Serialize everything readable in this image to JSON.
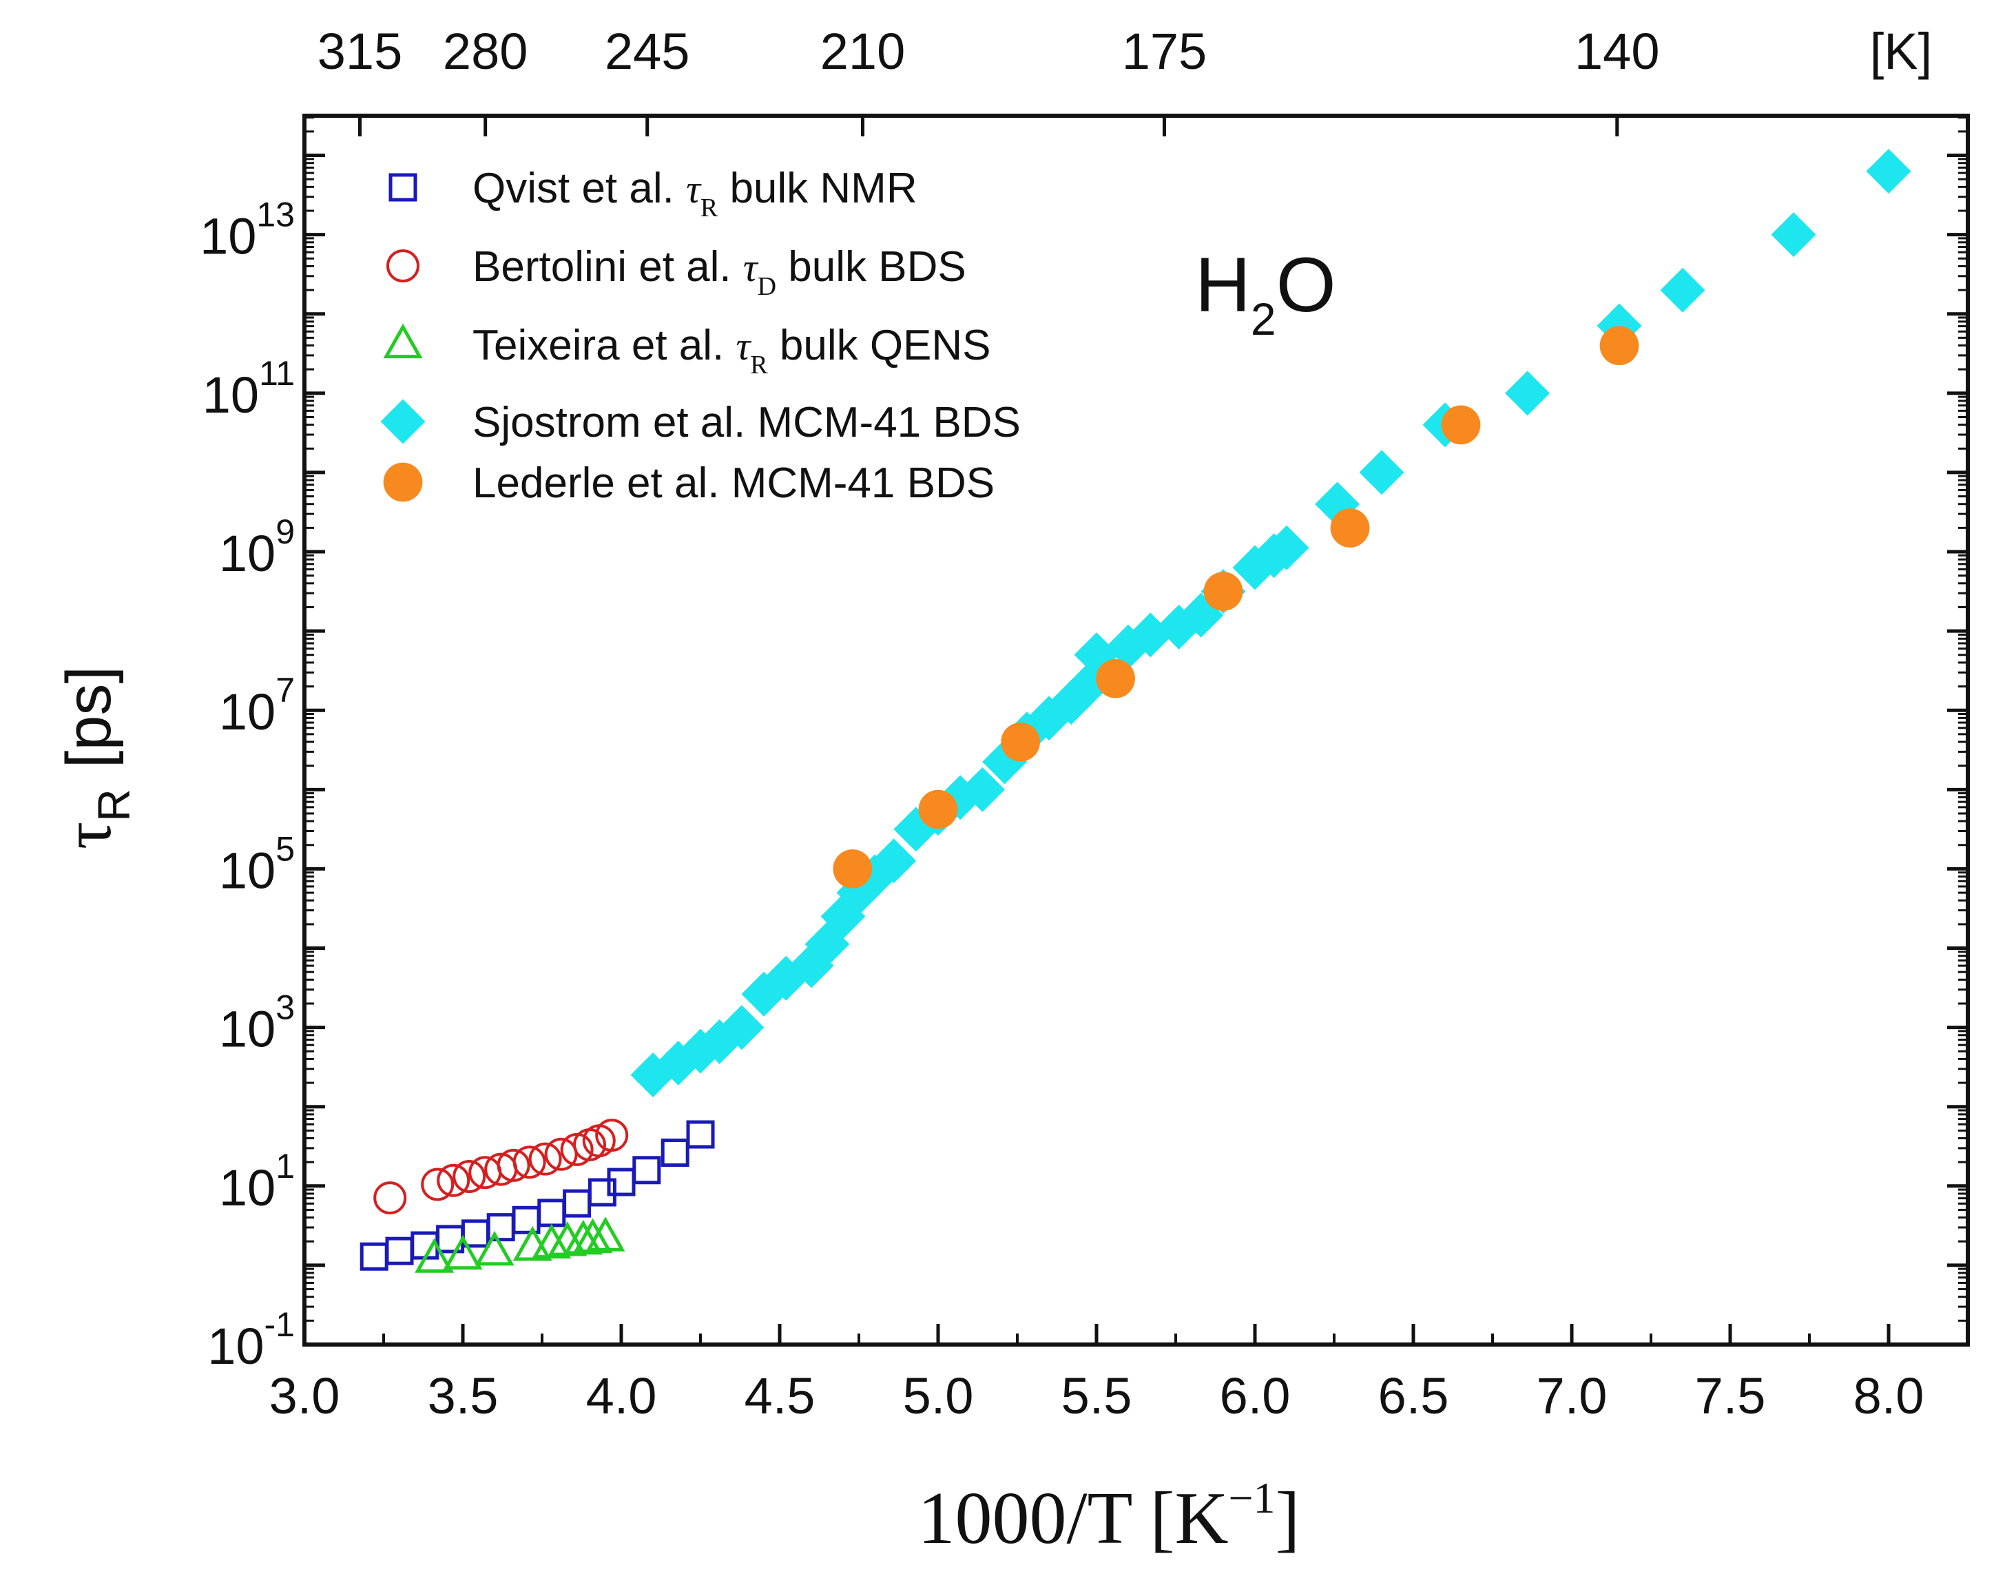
{
  "chart_data": {
    "type": "scatter",
    "title": "",
    "annotation": {
      "text": "H",
      "sub": "2",
      "tail": "O"
    },
    "xlabel": {
      "main": "1000/T  [K",
      "sup": "−1",
      "tail": "]"
    },
    "ylabel": {
      "greek": "τ",
      "sub": "R",
      "unit": "[ps]"
    },
    "xlim": [
      3.0,
      8.25
    ],
    "ylim_log10": [
      -1,
      14.5
    ],
    "x_ticks": [
      3.0,
      3.5,
      4.0,
      4.5,
      5.0,
      5.5,
      6.0,
      6.5,
      7.0,
      7.5,
      8.0
    ],
    "x_tick_labels": [
      "3.0",
      "3.5",
      "4.0",
      "4.5",
      "5.0",
      "5.5",
      "6.0",
      "6.5",
      "7.0",
      "7.5",
      "8.0"
    ],
    "y_ticks_exp": [
      -1,
      1,
      3,
      5,
      7,
      9,
      11,
      13
    ],
    "y_tick_labels": [
      "-1",
      "1",
      "3",
      "5",
      "7",
      "9",
      "11",
      "13"
    ],
    "top_axis": {
      "unit_label": "[K]",
      "ticks": [
        {
          "label": "315",
          "x": 3.175
        },
        {
          "label": "280",
          "x": 3.571
        },
        {
          "label": "245",
          "x": 4.082
        },
        {
          "label": "210",
          "x": 4.762
        },
        {
          "label": "175",
          "x": 5.714
        },
        {
          "label": "140",
          "x": 7.143
        }
      ]
    },
    "grid": false,
    "legend_position": "top-left",
    "series": [
      {
        "name": "Qvist et al. τR bulk NMR",
        "label_parts": [
          "Qvist et al. ",
          "τ",
          "R",
          " bulk NMR"
        ],
        "marker": "square-open",
        "color": "#1a1ab8",
        "points": [
          [
            3.22,
            0.11
          ],
          [
            3.3,
            0.18
          ],
          [
            3.38,
            0.25
          ],
          [
            3.46,
            0.33
          ],
          [
            3.54,
            0.4
          ],
          [
            3.62,
            0.48
          ],
          [
            3.7,
            0.57
          ],
          [
            3.78,
            0.66
          ],
          [
            3.86,
            0.78
          ],
          [
            3.94,
            0.92
          ],
          [
            4.0,
            1.05
          ],
          [
            4.08,
            1.2
          ],
          [
            4.17,
            1.42
          ],
          [
            4.25,
            1.65
          ]
        ]
      },
      {
        "name": "Bertolini et al. τD bulk BDS",
        "label_parts": [
          "Bertolini et al. ",
          "τ",
          "D",
          " bulk BDS"
        ],
        "marker": "circle-open",
        "color": "#d42020",
        "points": [
          [
            3.27,
            0.85
          ],
          [
            3.42,
            1.02
          ],
          [
            3.47,
            1.07
          ],
          [
            3.52,
            1.12
          ],
          [
            3.57,
            1.17
          ],
          [
            3.62,
            1.21
          ],
          [
            3.66,
            1.26
          ],
          [
            3.71,
            1.3
          ],
          [
            3.76,
            1.34
          ],
          [
            3.81,
            1.4
          ],
          [
            3.86,
            1.46
          ],
          [
            3.9,
            1.52
          ],
          [
            3.93,
            1.57
          ],
          [
            3.97,
            1.64
          ]
        ]
      },
      {
        "name": "Teixeira et al.  τR bulk QENS",
        "label_parts": [
          "Teixeira et al.  ",
          "τ",
          "R",
          " bulk QENS"
        ],
        "marker": "triangle-open",
        "color": "#22cc22",
        "points": [
          [
            3.41,
            0.08
          ],
          [
            3.5,
            0.12
          ],
          [
            3.6,
            0.17
          ],
          [
            3.72,
            0.23
          ],
          [
            3.78,
            0.26
          ],
          [
            3.83,
            0.29
          ],
          [
            3.88,
            0.31
          ],
          [
            3.91,
            0.33
          ],
          [
            3.95,
            0.35
          ]
        ]
      },
      {
        "name": "Sjostrom et al. MCM-41 BDS",
        "label_parts": [
          "Sjostrom et al. MCM-41 BDS"
        ],
        "marker": "diamond-filled",
        "color": "#1ee6ee",
        "points": [
          [
            4.1,
            2.4
          ],
          [
            4.18,
            2.55
          ],
          [
            4.25,
            2.7
          ],
          [
            4.31,
            2.82
          ],
          [
            4.38,
            3.0
          ],
          [
            4.45,
            3.42
          ],
          [
            4.52,
            3.62
          ],
          [
            4.6,
            3.78
          ],
          [
            4.65,
            4.05
          ],
          [
            4.7,
            4.4
          ],
          [
            4.75,
            4.7
          ],
          [
            4.8,
            4.9
          ],
          [
            4.86,
            5.1
          ],
          [
            4.93,
            5.5
          ],
          [
            5.0,
            5.7
          ],
          [
            5.07,
            5.9
          ],
          [
            5.14,
            6.0
          ],
          [
            5.21,
            6.35
          ],
          [
            5.28,
            6.7
          ],
          [
            5.35,
            6.9
          ],
          [
            5.42,
            7.1
          ],
          [
            5.47,
            7.3
          ],
          [
            5.5,
            7.7
          ],
          [
            5.6,
            7.8
          ],
          [
            5.67,
            7.95
          ],
          [
            5.76,
            8.05
          ],
          [
            5.83,
            8.2
          ],
          [
            5.9,
            8.5
          ],
          [
            6.0,
            8.8
          ],
          [
            6.06,
            8.95
          ],
          [
            6.1,
            9.05
          ],
          [
            6.26,
            9.6
          ],
          [
            6.4,
            10.0
          ],
          [
            6.6,
            10.6
          ],
          [
            6.86,
            11.0
          ],
          [
            7.15,
            11.85
          ],
          [
            7.35,
            12.3
          ],
          [
            7.7,
            13.0
          ],
          [
            8.0,
            13.8
          ]
        ]
      },
      {
        "name": "Lederle et al. MCM-41 BDS",
        "label_parts": [
          "Lederle et al. MCM-41 BDS"
        ],
        "marker": "circle-filled",
        "color": "#f7891f",
        "points": [
          [
            4.73,
            5.0
          ],
          [
            5.0,
            5.75
          ],
          [
            5.26,
            6.6
          ],
          [
            5.56,
            7.4
          ],
          [
            5.9,
            8.5
          ],
          [
            6.3,
            9.3
          ],
          [
            6.65,
            10.6
          ],
          [
            7.15,
            11.6
          ]
        ]
      }
    ]
  }
}
